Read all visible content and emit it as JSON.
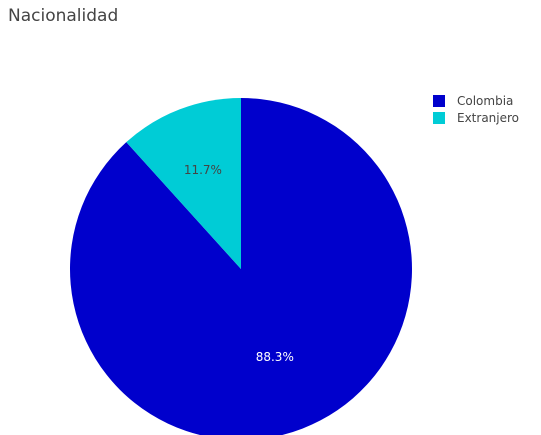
{
  "chart_data": {
    "type": "pie",
    "title": "Nacionalidad",
    "labels": [
      "Colombia",
      "Extranjero"
    ],
    "values": [
      88.3,
      11.7
    ],
    "value_labels": [
      "88.3%",
      "11.7%"
    ],
    "colors": [
      "#0000CC",
      "#00CCD6"
    ],
    "start": "top",
    "direction": "clockwise",
    "legend_position": "top-right",
    "text_colors": [
      "#ffffff",
      "#444444"
    ]
  }
}
